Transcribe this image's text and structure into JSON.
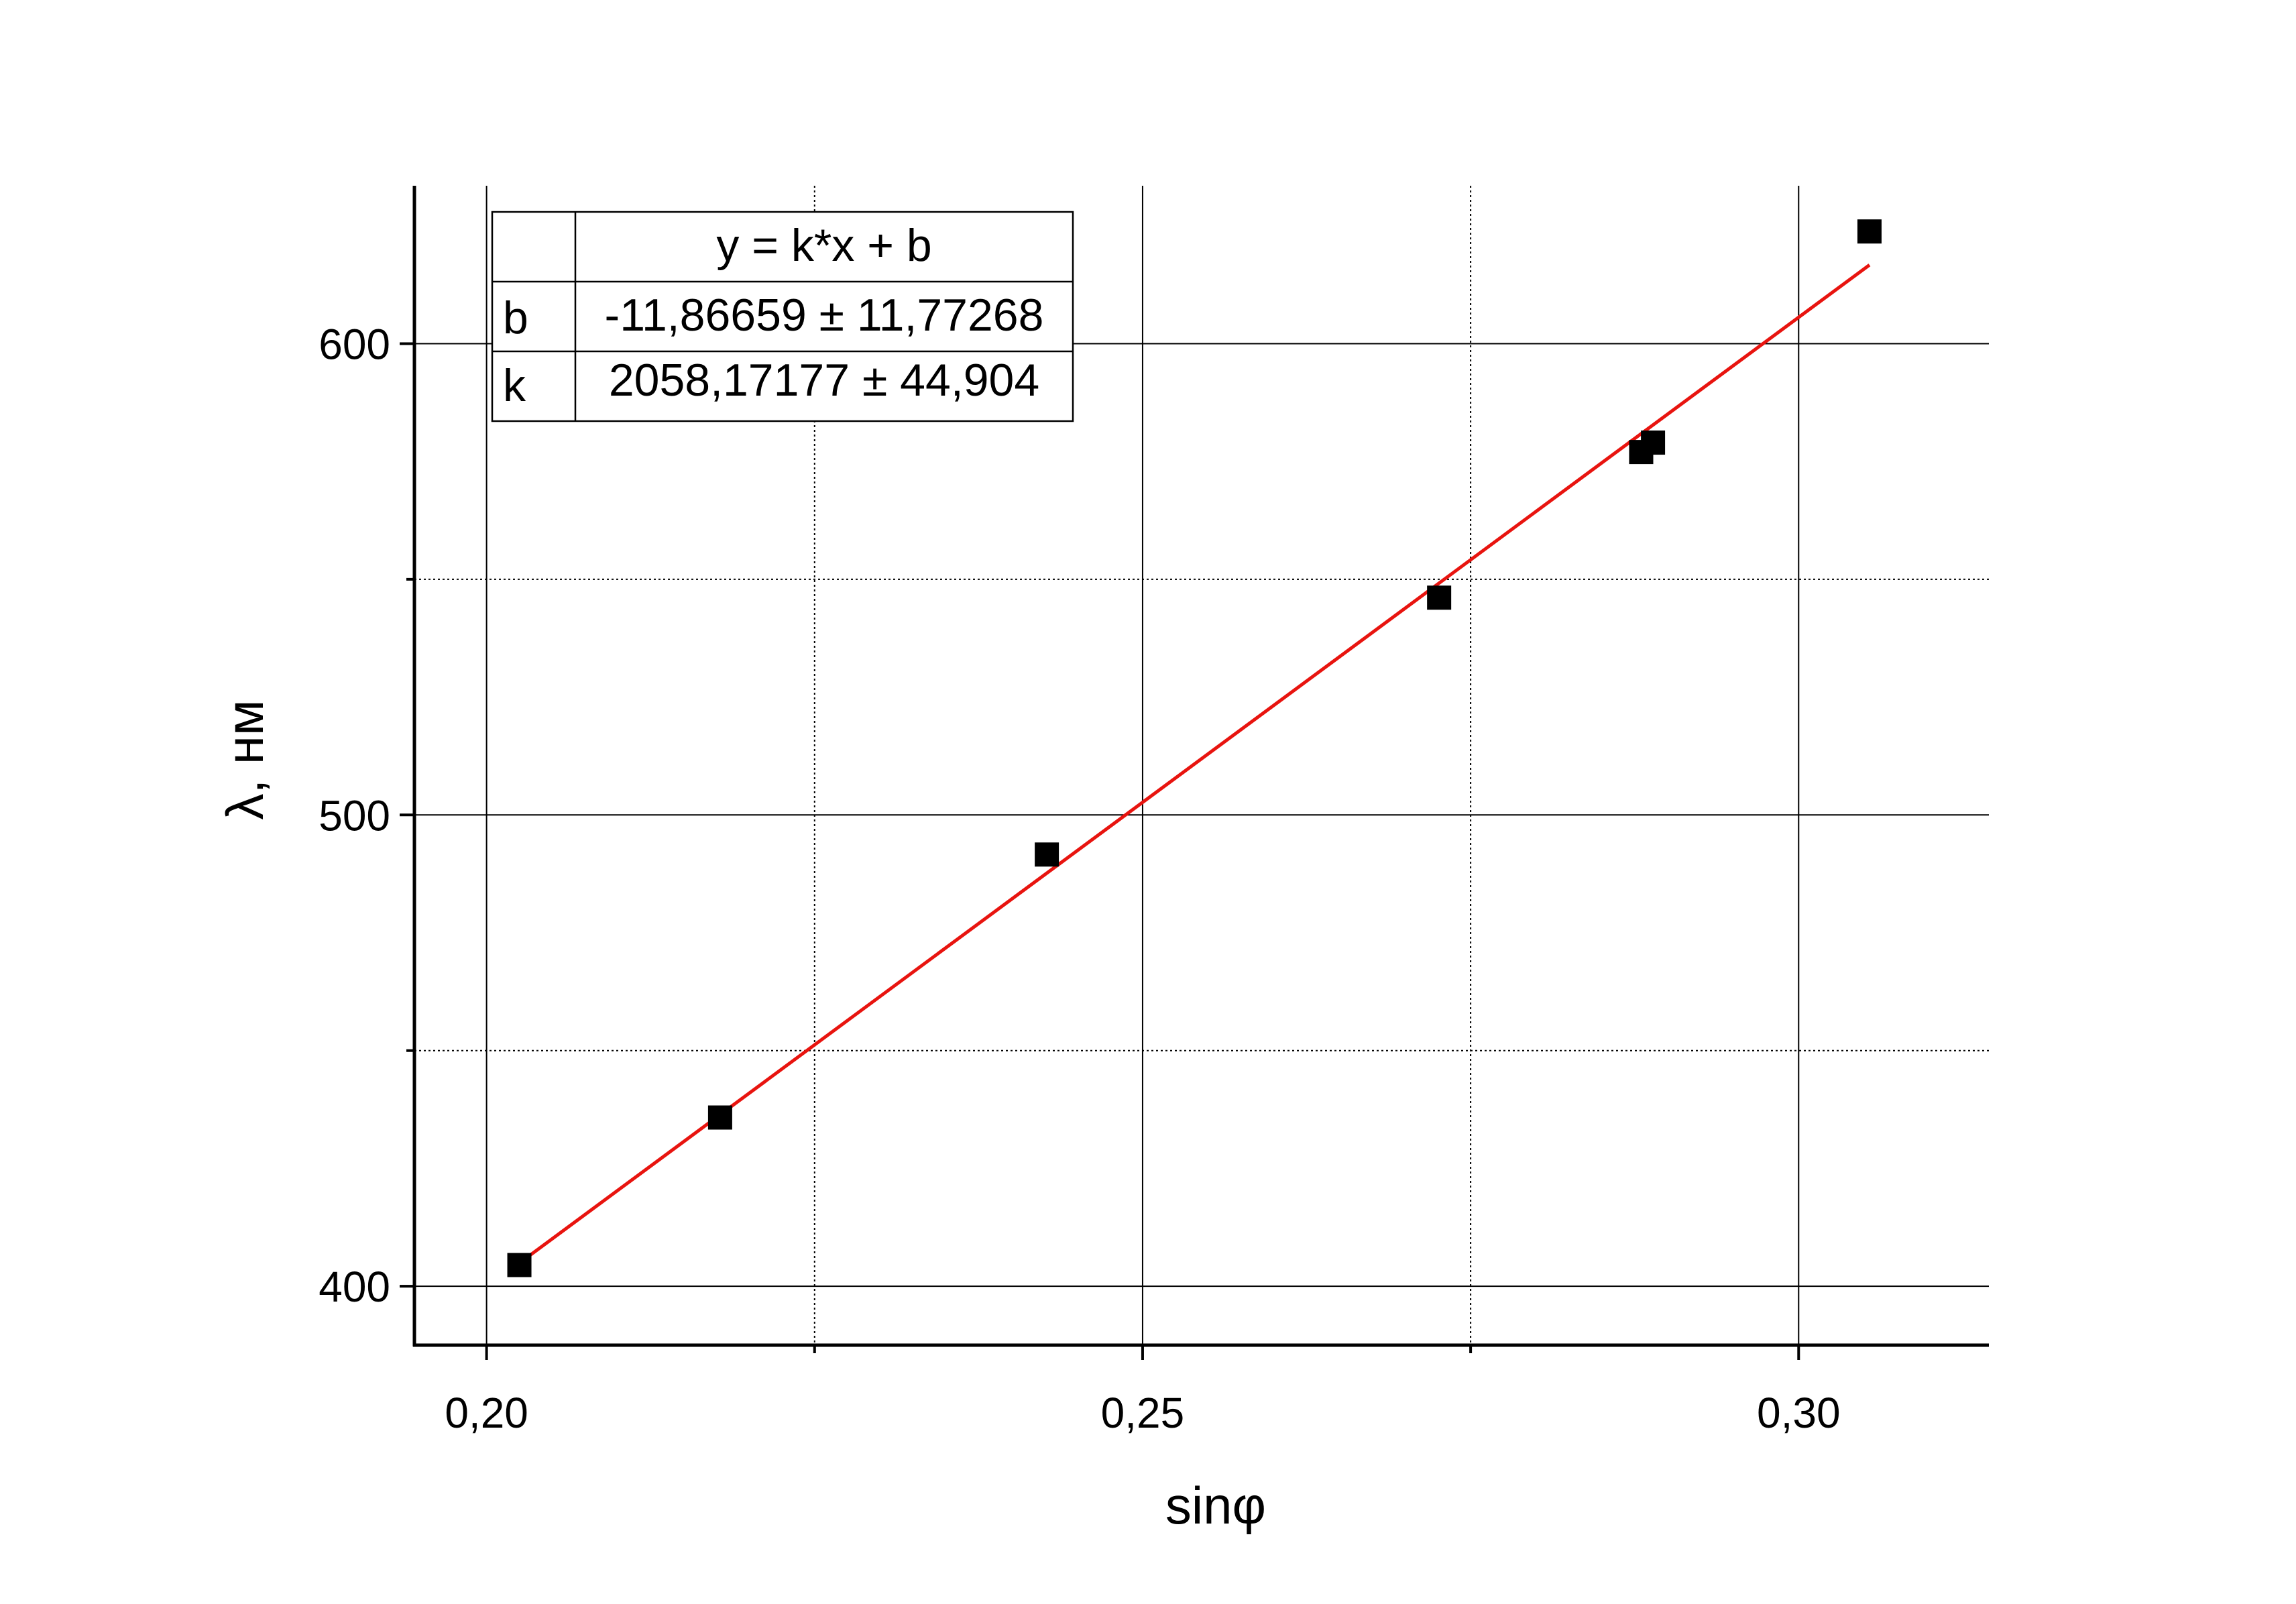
{
  "chart_data": {
    "type": "scatter",
    "title": "",
    "xlabel": "sinφ",
    "ylabel": "λ, нм",
    "xlim": [
      0.1945,
      0.3145
    ],
    "ylim": [
      387.5,
      633.5
    ],
    "x_ticks": [
      {
        "value": 0.2,
        "label": "0,20"
      },
      {
        "value": 0.25,
        "label": "0,25"
      },
      {
        "value": 0.3,
        "label": "0,30"
      }
    ],
    "x_minor_ticks": [
      0.225,
      0.275
    ],
    "y_ticks": [
      {
        "value": 400,
        "label": "400"
      },
      {
        "value": 500,
        "label": "500"
      },
      {
        "value": 600,
        "label": "600"
      }
    ],
    "y_minor_ticks": [
      450,
      550
    ],
    "grid": true,
    "colors": {
      "points": "#000000",
      "fit_line": "#e8140f",
      "grid": "#000000"
    },
    "series": [
      {
        "marker": "square",
        "x": [
          0.2025,
          0.2178,
          0.2427,
          0.2726,
          0.288,
          0.2889,
          0.3054
        ],
        "y": [
          404.5,
          435.8,
          491.6,
          546.1,
          577.0,
          579.0,
          623.8
        ]
      }
    ],
    "fit": {
      "equation": "y = k*x + b",
      "k": 2058.17177,
      "b": -11.86659,
      "x_range": [
        0.2025,
        0.3054
      ],
      "table": {
        "header": "y = k*x + b",
        "rows": [
          {
            "name": "b",
            "value": "-11,86659 ± 11,77268"
          },
          {
            "name": "k",
            "value": "2058,17177 ± 44,904"
          }
        ]
      }
    }
  }
}
